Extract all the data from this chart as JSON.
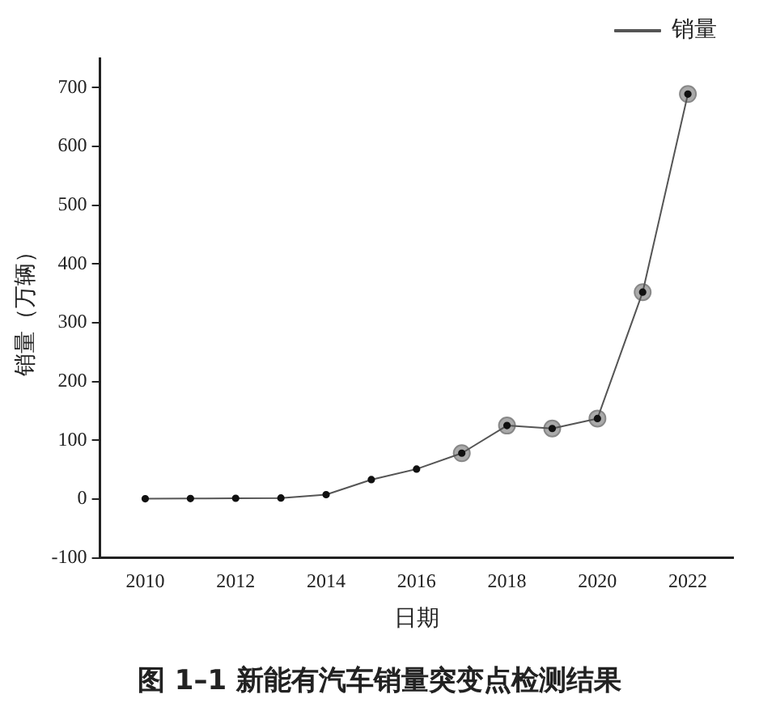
{
  "chart_data": {
    "type": "line",
    "xlabel": "日期",
    "ylabel": "销量（万辆）",
    "x": [
      2010,
      2011,
      2012,
      2013,
      2014,
      2015,
      2016,
      2017,
      2018,
      2019,
      2020,
      2021,
      2022
    ],
    "series": [
      {
        "name": "销量",
        "color": "#555555",
        "values": [
          0.5,
          0.8,
          1.3,
          1.8,
          7.5,
          33,
          51,
          78,
          125,
          120,
          137,
          352,
          689
        ]
      },
      {
        "type": "scatter",
        "color": "#aaaaaa",
        "x": [
          2017,
          2018,
          2019,
          2020,
          2021,
          2022
        ],
        "values": [
          78,
          125,
          120,
          137,
          352,
          689
        ]
      }
    ],
    "xlim": [
      2009,
      2023
    ],
    "xticks": [
      2010,
      2012,
      2014,
      2016,
      2018,
      2020,
      2022
    ],
    "ylim": [
      -100,
      750
    ],
    "yticks": [
      -100,
      0,
      100,
      200,
      300,
      400,
      500,
      600,
      700
    ],
    "grid": false,
    "legend": "top right",
    "marker": "circle",
    "line_style": "solid",
    "annotations": [
      "图 1–1 新能有汽车销量突变点检测结果"
    ]
  }
}
